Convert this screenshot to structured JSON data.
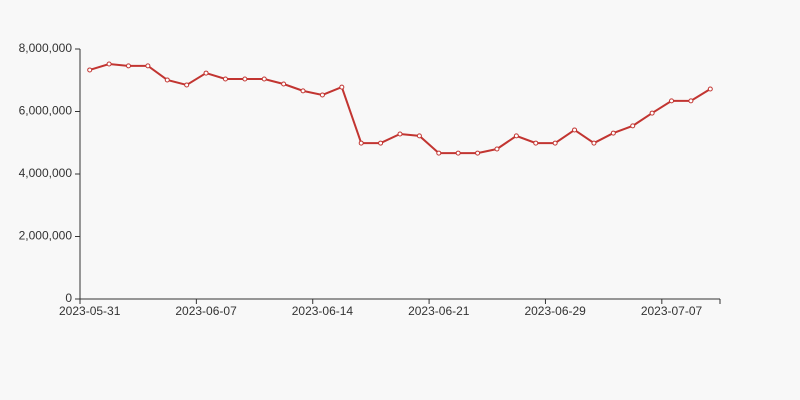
{
  "chart_data": {
    "type": "line",
    "categories": [
      "2023-05-31",
      null,
      null,
      null,
      null,
      null,
      "2023-06-07",
      null,
      null,
      null,
      null,
      null,
      "2023-06-14",
      null,
      null,
      null,
      null,
      null,
      "2023-06-21",
      null,
      null,
      null,
      null,
      null,
      "2023-06-29",
      null,
      null,
      null,
      null,
      null,
      "2023-07-07",
      null,
      null
    ],
    "series": [
      {
        "color": "#c23531",
        "values": [
          7330000,
          7520000,
          7460000,
          7460000,
          7010000,
          6850000,
          7230000,
          7040000,
          7040000,
          7040000,
          6880000,
          6660000,
          6530000,
          6780000,
          4990000,
          4990000,
          5280000,
          5220000,
          4670000,
          4670000,
          4670000,
          4800000,
          5220000,
          4990000,
          4990000,
          5410000,
          4990000,
          5310000,
          5540000,
          5950000,
          6340000,
          6340000,
          6720000
        ]
      }
    ],
    "ylim": [
      0,
      8000000
    ],
    "yticks": [
      0,
      {
        "value": 2000000,
        "label": "2,000,000"
      },
      {
        "value": 4000000,
        "label": "4,000,000"
      },
      {
        "value": 6000000,
        "label": "6,000,000"
      },
      {
        "value": 8000000,
        "label": "8,000,000"
      }
    ]
  }
}
